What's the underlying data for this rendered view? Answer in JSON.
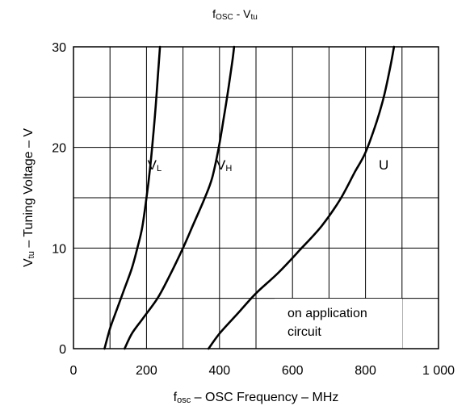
{
  "chart_data": {
    "type": "line",
    "title": {
      "main": "f",
      "main_sub": "OSC",
      "tail": " - V",
      "tail_sub": "tu"
    },
    "xlabel": {
      "main": "f",
      "main_sub": "osc",
      "rest": " – OSC Frequency – MHz"
    },
    "ylabel": {
      "main": "V",
      "main_sub": "tu",
      "rest": " – Tuning Voltage – V"
    },
    "xlim": [
      0,
      1000
    ],
    "ylim": [
      0,
      30
    ],
    "x_ticks": [
      0,
      200,
      400,
      600,
      800,
      1000
    ],
    "x_tick_labels": [
      "0",
      "200",
      "400",
      "600",
      "800",
      "1 000"
    ],
    "y_ticks": [
      0,
      10,
      20,
      30
    ],
    "y_tick_labels": [
      "0",
      "10",
      "20",
      "30"
    ],
    "x_grid": [
      100,
      200,
      300,
      400,
      500,
      600,
      700,
      800,
      900
    ],
    "y_grid": [
      5,
      10,
      15,
      20,
      25
    ],
    "grid": true,
    "series": [
      {
        "name": "V",
        "name_sub": "L",
        "label_at": {
          "x": 222,
          "y": 17.8
        },
        "points": [
          [
            85,
            0
          ],
          [
            100,
            2
          ],
          [
            120,
            4
          ],
          [
            140,
            6
          ],
          [
            160,
            8
          ],
          [
            175,
            10
          ],
          [
            188,
            12
          ],
          [
            200,
            15
          ],
          [
            210,
            18
          ],
          [
            218,
            21
          ],
          [
            225,
            24
          ],
          [
            231,
            27
          ],
          [
            237,
            30
          ]
        ]
      },
      {
        "name": "V",
        "name_sub": "H",
        "label_at": {
          "x": 413,
          "y": 17.8
        },
        "points": [
          [
            140,
            0
          ],
          [
            160,
            1.5
          ],
          [
            190,
            3
          ],
          [
            230,
            5
          ],
          [
            260,
            7
          ],
          [
            300,
            10
          ],
          [
            330,
            12.5
          ],
          [
            360,
            15
          ],
          [
            380,
            17
          ],
          [
            398,
            20
          ],
          [
            412,
            23
          ],
          [
            425,
            26
          ],
          [
            435,
            28.5
          ],
          [
            440,
            30
          ]
        ]
      },
      {
        "name": "U",
        "label_at": {
          "x": 850,
          "y": 17.8
        },
        "points": [
          [
            370,
            0
          ],
          [
            400,
            1.5
          ],
          [
            450,
            3.5
          ],
          [
            500,
            5.5
          ],
          [
            560,
            7.5
          ],
          [
            620,
            9.8
          ],
          [
            680,
            12.2
          ],
          [
            730,
            14.8
          ],
          [
            770,
            17.5
          ],
          [
            800,
            19.5
          ],
          [
            830,
            22.5
          ],
          [
            850,
            25
          ],
          [
            868,
            28
          ],
          [
            878,
            30
          ]
        ]
      }
    ],
    "annotation": [
      "on application",
      "circuit"
    ]
  }
}
